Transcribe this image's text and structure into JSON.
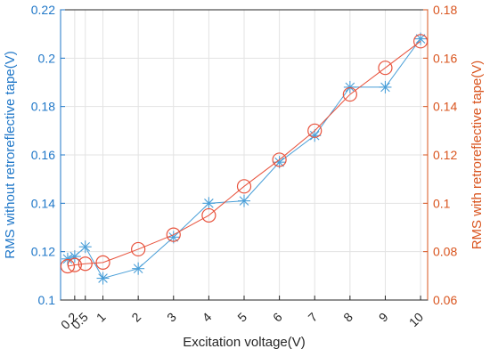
{
  "chart_data": {
    "type": "line",
    "xlabel": "Excitation voltage(V)",
    "ylabel_left": "RMS without retroreflective tape(V)",
    "ylabel_right": "RMS with retroreflective tape(V)",
    "x_ticks": [
      0.2,
      0.5,
      1,
      2,
      3,
      4,
      5,
      6,
      7,
      8,
      9,
      10
    ],
    "x_tick_labels": [
      "0.2",
      "0.5",
      "1",
      "2",
      "3",
      "4",
      "5",
      "6",
      "7",
      "8",
      "9",
      "10"
    ],
    "xlim": [
      -0.2,
      10.2
    ],
    "ylim_left": [
      0.1,
      0.22
    ],
    "y_ticks_left": [
      0.1,
      0.12,
      0.14,
      0.16,
      0.18,
      0.2,
      0.22
    ],
    "y_tick_labels_left": [
      "0.1",
      "0.12",
      "0.14",
      "0.16",
      "0.18",
      "0.2",
      "0.22"
    ],
    "ylim_right": [
      0.06,
      0.18
    ],
    "y_ticks_right": [
      0.06,
      0.08,
      0.1,
      0.12,
      0.14,
      0.16,
      0.18
    ],
    "y_tick_labels_right": [
      "0.06",
      "0.08",
      "0.1",
      "0.12",
      "0.14",
      "0.16",
      "0.18"
    ],
    "grid": true,
    "series": [
      {
        "axis": "left",
        "marker": "asterisk",
        "color": "#4a9fd8",
        "x": [
          0,
          0.2,
          0.5,
          1,
          2,
          3,
          4,
          5,
          6,
          7,
          8,
          9,
          10
        ],
        "values": [
          0.117,
          0.118,
          0.122,
          0.109,
          0.113,
          0.126,
          0.14,
          0.141,
          0.157,
          0.168,
          0.188,
          0.188,
          0.208
        ]
      },
      {
        "axis": "right",
        "marker": "circle",
        "color": "#e8523c",
        "x": [
          0,
          0.2,
          0.5,
          1,
          2,
          3,
          4,
          5,
          6,
          7,
          8,
          9,
          10
        ],
        "values": [
          0.074,
          0.0745,
          0.075,
          0.0755,
          0.081,
          0.087,
          0.095,
          0.107,
          0.118,
          0.13,
          0.145,
          0.156,
          0.167
        ]
      }
    ],
    "left_axis_color": "#1f77c8",
    "right_axis_color": "#d9541e"
  }
}
